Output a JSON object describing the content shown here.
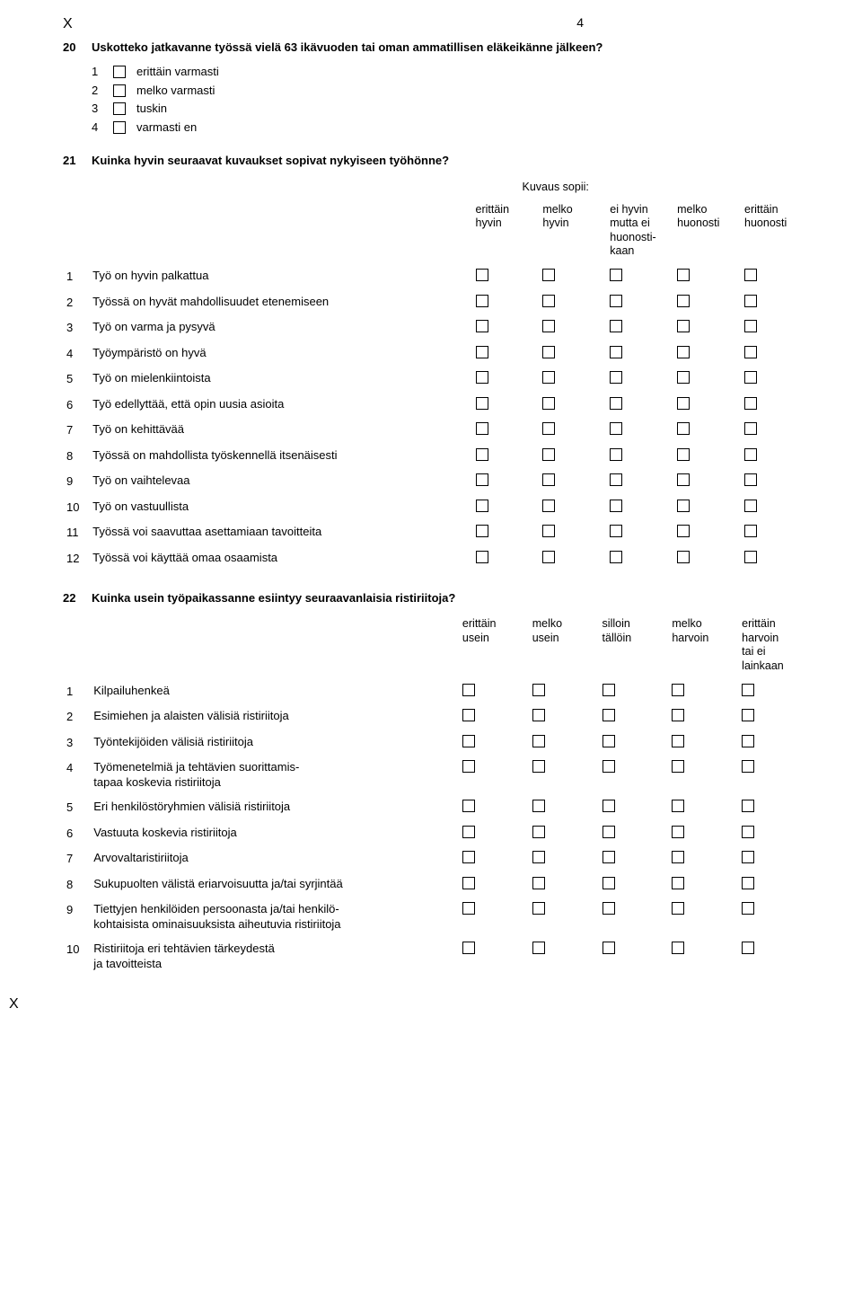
{
  "page": {
    "marker_x": "X",
    "number": "4",
    "bottom_marker_x": "X"
  },
  "q20": {
    "number": "20",
    "text": "Uskotteko jatkavanne työssä vielä 63 ikävuoden tai oman ammatillisen eläkeikänne jälkeen?",
    "options": [
      {
        "n": "1",
        "label": "erittäin varmasti"
      },
      {
        "n": "2",
        "label": "melko varmasti"
      },
      {
        "n": "3",
        "label": "tuskin"
      },
      {
        "n": "4",
        "label": "varmasti en"
      }
    ]
  },
  "q21": {
    "number": "21",
    "text": "Kuinka hyvin seuraavat kuvaukset sopivat nykyiseen työhönne?",
    "kuvaus": "Kuvaus sopii:",
    "headers": [
      "erittäin\nhyvin",
      "melko\nhyvin",
      "ei hyvin\nmutta ei\nhuonosti-\nkaan",
      "melko\nhuonosti",
      "erittäin\nhuonosti"
    ],
    "rows": [
      {
        "n": "1",
        "label": "Työ on hyvin palkattua"
      },
      {
        "n": "2",
        "label": "Työssä on hyvät mahdollisuudet etenemiseen"
      },
      {
        "n": "3",
        "label": "Työ on varma ja pysyvä"
      },
      {
        "n": "4",
        "label": "Työympäristö on hyvä"
      },
      {
        "n": "5",
        "label": "Työ on mielenkiintoista"
      },
      {
        "n": "6",
        "label": "Työ edellyttää, että opin uusia asioita"
      },
      {
        "n": "7",
        "label": "Työ on kehittävää"
      },
      {
        "n": "8",
        "label": "Työssä on mahdollista työskennellä itsenäisesti"
      },
      {
        "n": "9",
        "label": "Työ on vaihtelevaa"
      },
      {
        "n": "10",
        "label": "Työ on vastuullista"
      },
      {
        "n": "11",
        "label": "Työssä voi saavuttaa asettamiaan tavoitteita"
      },
      {
        "n": "12",
        "label": "Työssä voi käyttää omaa osaamista"
      }
    ]
  },
  "q22": {
    "number": "22",
    "text": "Kuinka usein työpaikassanne esiintyy seuraavanlaisia ristiriitoja?",
    "headers": [
      "erittäin\nusein",
      "melko\nusein",
      "silloin\ntällöin",
      "melko\nharvoin",
      "erittäin\nharvoin\ntai ei\nlainkaan"
    ],
    "rows": [
      {
        "n": "1",
        "label": "Kilpailuhenkeä"
      },
      {
        "n": "2",
        "label": "Esimiehen ja alaisten välisiä ristiriitoja"
      },
      {
        "n": "3",
        "label": "Työntekijöiden välisiä ristiriitoja"
      },
      {
        "n": "4",
        "label": "Työmenetelmiä ja tehtävien suorittamis-\ntapaa koskevia ristiriitoja"
      },
      {
        "n": "5",
        "label": "Eri henkilöstöryhmien välisiä ristiriitoja"
      },
      {
        "n": "6",
        "label": "Vastuuta koskevia ristiriitoja"
      },
      {
        "n": "7",
        "label": "Arvovaltaristiriitoja"
      },
      {
        "n": "8",
        "label": "Sukupuolten välistä eriarvoisuutta ja/tai syrjintää"
      },
      {
        "n": "9",
        "label": "Tiettyjen henkilöiden persoonasta ja/tai henkilö-\nkohtaisista ominaisuuksista aiheutuvia ristiriitoja"
      },
      {
        "n": "10",
        "label": "Ristiriitoja eri tehtävien tärkeydestä\nja tavoitteista"
      }
    ]
  }
}
